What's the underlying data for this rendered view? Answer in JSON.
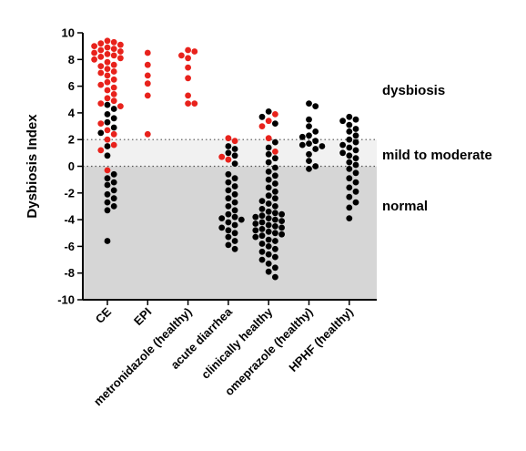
{
  "chart_data": {
    "type": "scatter",
    "subtype": "strip-plot",
    "ylabel": "Dysbiosis Index",
    "ylim": [
      -10,
      10
    ],
    "yticks": [
      -10,
      -8,
      -6,
      -4,
      -2,
      0,
      2,
      4,
      6,
      8,
      10
    ],
    "reference_lines": [
      0,
      2
    ],
    "zones": [
      {
        "label": "dysbiosis",
        "from": 2,
        "to": 10,
        "color": "#ffffff"
      },
      {
        "label": "mild to moderate",
        "from": 0,
        "to": 2,
        "color": "#f1f1f1"
      },
      {
        "label": "normal",
        "from": -10,
        "to": 0,
        "color": "#d6d6d6"
      }
    ],
    "point_colors": {
      "red": "#e8221c",
      "black": "#000000"
    },
    "categories": [
      "CE",
      "EPI",
      "metronidazole (healthy)",
      "acute diarrhea",
      "clinically healthy",
      "omeprazole (healthy)",
      "HPHF (healthy)"
    ],
    "series": [
      {
        "category": "CE",
        "red": [
          9.4,
          9.3,
          9.2,
          9.1,
          9.0,
          8.9,
          8.8,
          8.7,
          8.6,
          8.5,
          8.4,
          8.3,
          8.2,
          8.1,
          8.0,
          7.8,
          7.6,
          7.5,
          7.3,
          7.1,
          7.0,
          6.8,
          6.5,
          6.3,
          6.1,
          5.9,
          5.7,
          5.4,
          5.1,
          4.9,
          4.7,
          4.5,
          3.2,
          2.7,
          2.4,
          2.0,
          1.6,
          1.2,
          -0.3
        ],
        "black": [
          4.6,
          4.3,
          3.9,
          3.6,
          3.3,
          2.9,
          2.5,
          1.5,
          0.8,
          -0.6,
          -0.9,
          -1.2,
          -1.4,
          -1.8,
          -2.1,
          -2.4,
          -2.7,
          -3.0,
          -3.3,
          -5.6
        ]
      },
      {
        "category": "EPI",
        "red": [
          8.5,
          7.6,
          6.8,
          6.2,
          5.3,
          2.4
        ],
        "black": []
      },
      {
        "category": "metronidazole (healthy)",
        "red": [
          8.7,
          8.6,
          8.3,
          8.1,
          7.4,
          6.6,
          5.3,
          4.7,
          4.7
        ],
        "black": []
      },
      {
        "category": "acute diarrhea",
        "red": [
          2.1,
          1.9,
          0.7,
          0.5
        ],
        "black": [
          1.5,
          1.3,
          1.0,
          0.8,
          0.2,
          -0.6,
          -0.9,
          -1.2,
          -1.5,
          -1.8,
          -2.1,
          -2.4,
          -2.7,
          -3.0,
          -3.3,
          -3.6,
          -3.8,
          -3.9,
          -4.0,
          -4.2,
          -4.4,
          -4.6,
          -4.8,
          -5.0,
          -5.3,
          -5.6,
          -5.9,
          -6.2
        ]
      },
      {
        "category": "clinically healthy",
        "red": [
          3.9,
          3.4,
          3.0,
          2.1,
          1.1
        ],
        "black": [
          4.1,
          3.7,
          3.2,
          1.8,
          1.4,
          0.9,
          0.6,
          0.3,
          -0.1,
          -0.4,
          -0.7,
          -1.0,
          -1.3,
          -1.6,
          -1.9,
          -2.2,
          -2.4,
          -2.6,
          -2.8,
          -3.0,
          -3.2,
          -3.4,
          -3.5,
          -3.6,
          -3.7,
          -3.8,
          -3.9,
          -4.0,
          -4.1,
          -4.2,
          -4.3,
          -4.4,
          -4.5,
          -4.6,
          -4.7,
          -4.8,
          -4.9,
          -5.0,
          -5.1,
          -5.2,
          -5.3,
          -5.5,
          -5.6,
          -5.8,
          -6.0,
          -6.2,
          -6.4,
          -6.6,
          -6.8,
          -7.0,
          -7.3,
          -7.6,
          -7.9,
          -8.3
        ]
      },
      {
        "category": "omeprazole (healthy)",
        "red": [],
        "black": [
          4.7,
          4.5,
          3.5,
          3.0,
          2.6,
          2.3,
          2.2,
          1.9,
          1.7,
          1.6,
          1.5,
          1.3,
          0.9,
          0.4,
          0.0,
          -0.2
        ]
      },
      {
        "category": "HPHF (healthy)",
        "red": [],
        "black": [
          3.7,
          3.5,
          3.4,
          3.1,
          2.8,
          2.6,
          2.3,
          2.0,
          1.8,
          1.6,
          1.4,
          1.2,
          1.0,
          0.8,
          0.6,
          0.3,
          0.1,
          -0.2,
          -0.5,
          -0.9,
          -1.2,
          -1.6,
          -1.9,
          -2.3,
          -2.7,
          -3.1,
          -3.9
        ]
      }
    ]
  }
}
